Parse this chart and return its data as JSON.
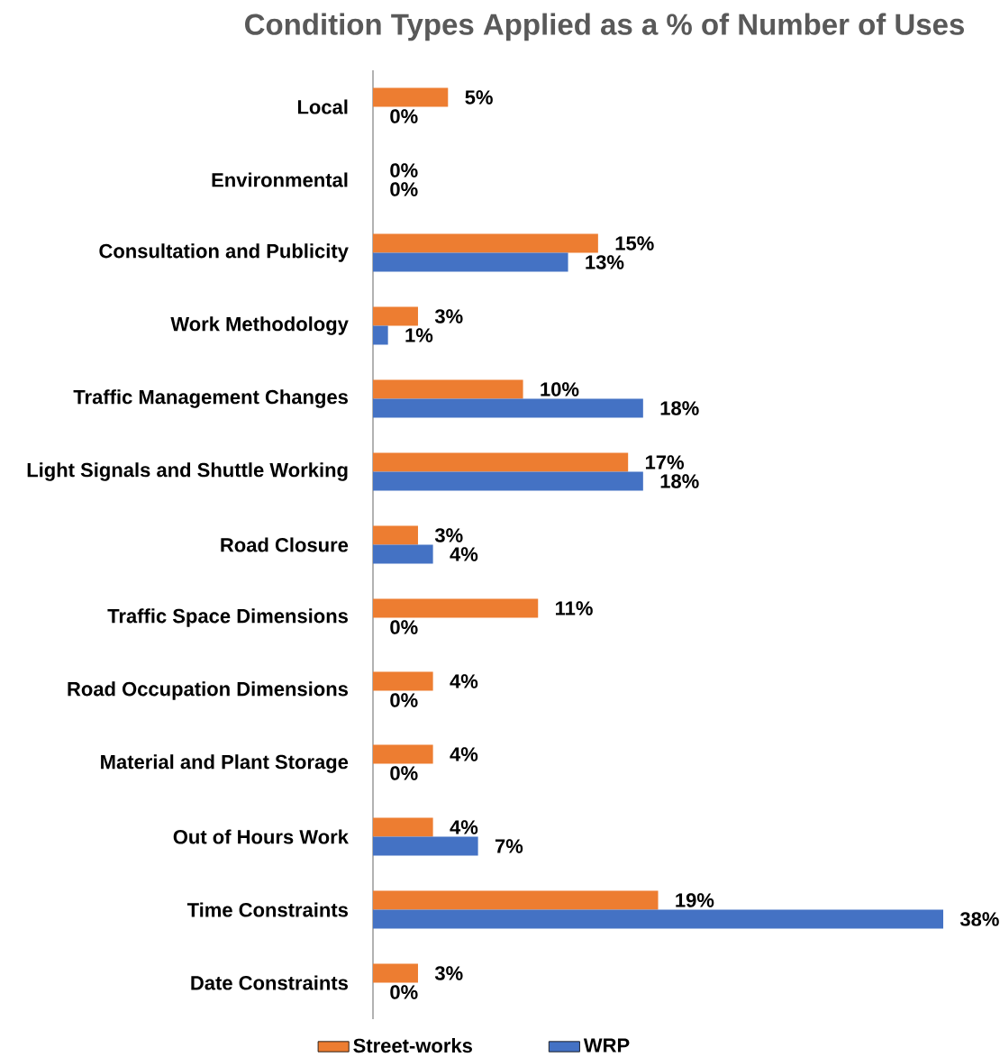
{
  "chart_data": {
    "type": "bar",
    "orientation": "horizontal",
    "title": "Condition Types Applied as a % of Number of Uses",
    "categories": [
      "Local",
      "Environmental",
      "Consultation and Publicity",
      "Work Methodology",
      "Traffic Management Changes",
      "Light Signals and Shuttle Working",
      "Road Closure",
      "Traffic Space Dimensions",
      "Road Occupation Dimensions",
      "Material and Plant Storage",
      "Out of Hours Work",
      "Time Constraints",
      "Date Constraints"
    ],
    "xlim": [
      0,
      38
    ],
    "series": [
      {
        "name": "Street-works",
        "color": "#ed7d31",
        "values": [
          5,
          0,
          15,
          3,
          10,
          17,
          3,
          11,
          4,
          4,
          4,
          19,
          3
        ],
        "value_labels": [
          "5%",
          "0%",
          "15%",
          "3%",
          "10%",
          "17%",
          "3%",
          "11%",
          "4%",
          "4%",
          "4%",
          "19%",
          "3%"
        ]
      },
      {
        "name": "WRP",
        "color": "#4472c4",
        "values": [
          0,
          0,
          13,
          1,
          18,
          18,
          4,
          0,
          0,
          0,
          7,
          38,
          0
        ],
        "value_labels": [
          "0%",
          "0%",
          "13%",
          "1%",
          "18%",
          "18%",
          "4%",
          "0%",
          "0%",
          "0%",
          "7%",
          "38%",
          "0%"
        ]
      }
    ],
    "legend": "bottom"
  }
}
